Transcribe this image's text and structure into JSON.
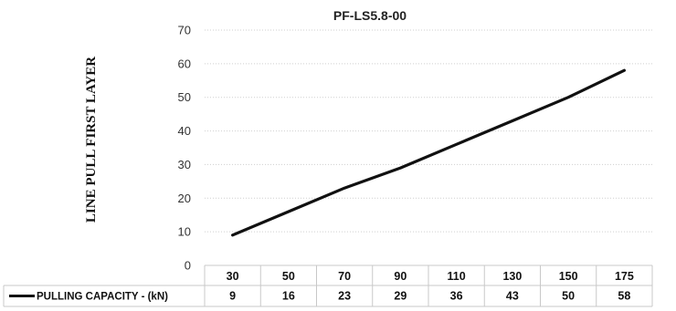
{
  "chart_data": {
    "type": "line",
    "title": "PF-LS5.8-00",
    "xlabel": "",
    "ylabel": "LINE PULL FIRST LAYER",
    "ylim": [
      0,
      70
    ],
    "yticks": [
      0,
      10,
      20,
      30,
      40,
      50,
      60,
      70
    ],
    "categories": [
      "30",
      "50",
      "70",
      "90",
      "110",
      "130",
      "150",
      "175"
    ],
    "series": [
      {
        "name": "PULLING CAPACITY - (kN)",
        "values": [
          9,
          16,
          23,
          29,
          36,
          43,
          50,
          58
        ],
        "color": "#111111"
      }
    ],
    "grid": true,
    "legend": "bottom-left (data table)"
  }
}
